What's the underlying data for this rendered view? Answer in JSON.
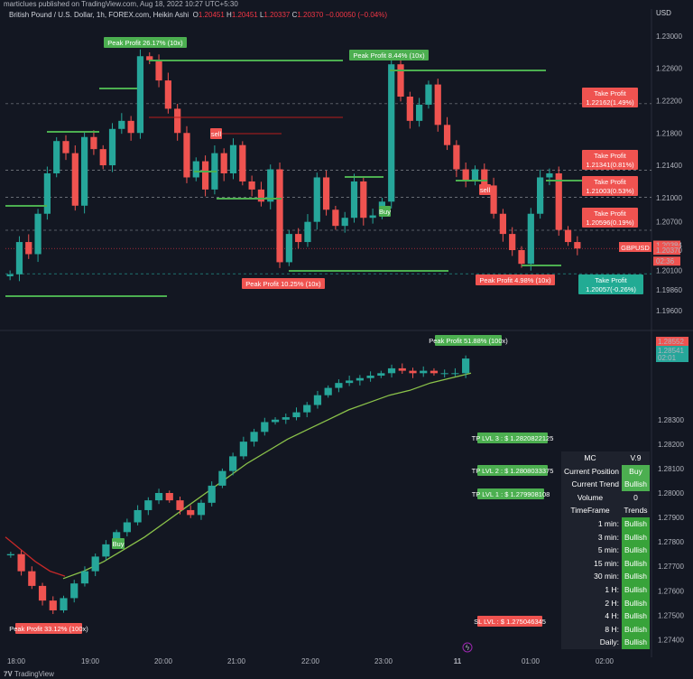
{
  "header": {
    "top_note": "marticlues published on TradingView.com, Aug 18, 2022 10:27 UTC+5:30",
    "symbol": "British Pound / U.S. Dollar, 1h, FOREX.com, Heikin Ashi",
    "ohlc": {
      "o_label": "O",
      "o": "1.20451",
      "h_label": "H",
      "h": "1.20451",
      "l_label": "L",
      "l": "1.20337",
      "c_label": "C",
      "c": "1.20370",
      "change": "−0.00050 (−0.04%)"
    },
    "currency": "USD"
  },
  "colors": {
    "bg": "#131722",
    "up": "#26a69a",
    "down": "#ef5350",
    "green": "#4caf50",
    "red": "#f23645",
    "grid": "#2a2e39"
  },
  "chart_data": [
    {
      "type": "candlestick",
      "title": "",
      "ylim": [
        1.194,
        1.232
      ],
      "y_ticks": [
        "1.23000",
        "1.22600",
        "1.22200",
        "1.21800",
        "1.21400",
        "1.21000",
        "1.20700",
        "1.20384",
        "1.20370",
        "1.20100",
        "1.19860",
        "1.19600"
      ],
      "y_tick_values": [
        1.23,
        1.226,
        1.222,
        1.218,
        1.214,
        1.21,
        1.207,
        1.204,
        1.2037,
        1.201,
        1.1986,
        1.196
      ],
      "countdown": "02:36",
      "symbol_badge": "GBPUSD",
      "close_series": [
        1.2005,
        1.2045,
        1.203,
        1.208,
        1.213,
        1.217,
        1.2155,
        1.209,
        1.2175,
        1.216,
        1.214,
        1.2185,
        1.2195,
        1.218,
        1.2275,
        1.227,
        1.2245,
        1.221,
        1.218,
        1.2125,
        1.2145,
        1.211,
        1.2155,
        1.213,
        1.2165,
        1.212,
        1.211,
        1.2095,
        1.2135,
        1.202,
        1.2055,
        1.2045,
        1.207,
        1.2125,
        1.2085,
        1.2065,
        1.2075,
        1.212,
        1.2075,
        1.2078,
        1.2095,
        1.2265,
        1.2225,
        1.2195,
        1.2215,
        1.224,
        1.219,
        1.2165,
        1.2135,
        1.212,
        1.2135,
        1.2115,
        1.208,
        1.2055,
        1.2035,
        1.2018,
        1.208,
        1.2125,
        1.213,
        1.206,
        1.2045,
        1.2037
      ],
      "annotations": [
        {
          "text": "Peak Profit 26.17% (10x)",
          "kind": "peak",
          "price": 1.2285
        },
        {
          "text": "Peak Profit 8.44% (10x)",
          "kind": "peak",
          "price": 1.2272
        },
        {
          "text": "Peak Profit 10.25% (10x)",
          "kind": "peak-low",
          "price": 1.2005
        },
        {
          "text": "Peak Profit 4.98% (10x)",
          "kind": "peak-low",
          "price": 1.2009
        },
        {
          "text": "sell",
          "kind": "sell",
          "price": 1.2175
        },
        {
          "text": "sell",
          "kind": "sell",
          "price": 1.211
        },
        {
          "text": "Buy",
          "kind": "buy",
          "price": 1.2068
        }
      ],
      "take_profit": [
        {
          "line1": "Take Profit",
          "line2": "1.22162(1.49%)",
          "price": 1.22162,
          "color": "#ef5350"
        },
        {
          "line1": "Take Profit",
          "line2": "1.21341(0.81%)",
          "price": 1.21341,
          "color": "#ef5350"
        },
        {
          "line1": "Take Profit",
          "line2": "1.21003(0.53%)",
          "price": 1.21003,
          "color": "#ef5350"
        },
        {
          "line1": "Take Profit",
          "line2": "1.20596(0.19%)",
          "price": 1.20596,
          "color": "#ef5350"
        },
        {
          "line1": "Take Profit",
          "line2": "1.20057(-0.26%)",
          "price": 1.20057,
          "color": "#22ab94"
        }
      ]
    },
    {
      "type": "candlestick",
      "title": "",
      "ylim": [
        1.2735,
        1.2865
      ],
      "y_ticks": [
        "1.28552",
        "1.28541",
        "1.28300",
        "1.28200",
        "1.28100",
        "1.28000",
        "1.27900",
        "1.27800",
        "1.27700",
        "1.27600",
        "1.27500",
        "1.27400"
      ],
      "y_tick_values": [
        1.28552,
        1.28541,
        1.283,
        1.282,
        1.281,
        1.28,
        1.279,
        1.278,
        1.277,
        1.276,
        1.275,
        1.274
      ],
      "countdown": "02:01",
      "x_ticks": [
        "18:00",
        "19:00",
        "20:00",
        "21:00",
        "22:00",
        "23:00",
        "11",
        "01:00",
        "02:00"
      ],
      "close_series": [
        1.2775,
        1.2768,
        1.2762,
        1.2756,
        1.2752,
        1.2757,
        1.2763,
        1.2768,
        1.2774,
        1.2779,
        1.2784,
        1.2788,
        1.2793,
        1.2797,
        1.28,
        1.2797,
        1.2793,
        1.2791,
        1.2796,
        1.2803,
        1.2809,
        1.2815,
        1.2821,
        1.2825,
        1.2829,
        1.283,
        1.2831,
        1.2833,
        1.2836,
        1.284,
        1.2843,
        1.2845,
        1.2846,
        1.2847,
        1.2848,
        1.2849,
        1.2851,
        1.285,
        1.2849,
        1.285,
        1.2849,
        1.2849,
        1.2849,
        1.2855
      ],
      "series": [
        {
          "name": "",
          "color": "#8bc34a",
          "values": [
            1.2765,
            1.2768,
            1.2772,
            1.2777,
            1.2782,
            1.2788,
            1.2794,
            1.28,
            1.2806,
            1.2812,
            1.2817,
            1.2822,
            1.2826,
            1.283,
            1.2834,
            1.2837,
            1.284,
            1.2842,
            1.2845,
            1.2847,
            1.2849
          ]
        },
        {
          "name": "",
          "color": "#c62828",
          "values": [
            1.2782,
            1.2777,
            1.2772,
            1.2768,
            1.2766
          ]
        }
      ],
      "annotations": [
        {
          "text": "Peak Profit 51.88% (100x)",
          "kind": "peak",
          "price": 1.2857
        },
        {
          "text": "Peak Profit 33.12% (100x)",
          "kind": "peak-low",
          "price": 1.2749
        },
        {
          "text": "Buy",
          "kind": "buy",
          "price": 1.2779
        },
        {
          "text": "TP LVL 3 : $ 1.2820822125",
          "kind": "tp",
          "price": 1.28208
        },
        {
          "text": "TP LVL 2 : $ 1.2808033375",
          "kind": "tp",
          "price": 1.2808
        },
        {
          "text": "TP LVL 1 : $ 1.279908108",
          "kind": "tp",
          "price": 1.27991
        },
        {
          "text": "SL LVL : $ 1.275046345",
          "kind": "sl",
          "price": 1.27505
        }
      ]
    }
  ],
  "mc_table": {
    "title": "MC",
    "version": "V.9",
    "rows": [
      {
        "k": "Current Position",
        "v": "Buy"
      },
      {
        "k": "Current Trend",
        "v": "Bullish"
      },
      {
        "k": "Volume",
        "v": "0"
      },
      {
        "k": "TimeFrame",
        "v": "Trends"
      },
      {
        "k": "1 min:",
        "v": "Bullish"
      },
      {
        "k": "3 min:",
        "v": "Bullish"
      },
      {
        "k": "5 min:",
        "v": "Bullish"
      },
      {
        "k": "15 min:",
        "v": "Bullish"
      },
      {
        "k": "30 min:",
        "v": "Bullish"
      },
      {
        "k": "1 H:",
        "v": "Bullish"
      },
      {
        "k": "2 H:",
        "v": "Bullish"
      },
      {
        "k": "4 H:",
        "v": "Bullish"
      },
      {
        "k": "8 H:",
        "v": "Bullish"
      },
      {
        "k": "Daily:",
        "v": "Bullish"
      }
    ]
  },
  "footer": {
    "brand": "TradingView"
  }
}
